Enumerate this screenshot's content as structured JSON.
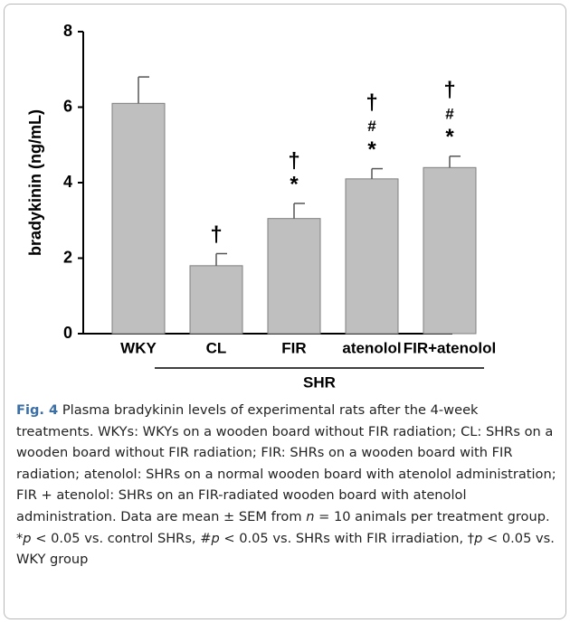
{
  "chart_data": {
    "type": "bar",
    "ylabel": "bradykinin (ng/mL)",
    "categories": [
      "WKY",
      "CL",
      "FIR",
      "atenolol",
      "FIR+atenolol"
    ],
    "values": [
      6.1,
      1.8,
      3.05,
      4.1,
      4.4
    ],
    "errors": [
      0.7,
      0.32,
      0.4,
      0.27,
      0.3
    ],
    "color": "#bfbfbf",
    "ylim": [
      0,
      8
    ],
    "yticks": [
      0,
      2,
      4,
      6,
      8
    ],
    "annotations": [
      [],
      [
        "†"
      ],
      [
        "†",
        "*"
      ],
      [
        "†",
        "#",
        "*"
      ],
      [
        "†",
        "#",
        "*"
      ]
    ],
    "group": {
      "label": "SHR",
      "categories": [
        1,
        4
      ]
    },
    "caption": [
      {
        "text": "Fig. 4",
        "style": "bold"
      },
      {
        "text": " Plasma bradykinin levels of experimental rats after the 4-week treatments. WKYs: WKYs on a wooden board without FIR radiation; CL: SHRs on a wooden board without FIR radiation; FIR: SHRs on a wooden board with FIR radiation; atenolol: SHRs on a normal wooden board with atenolol administration; FIR + atenolol: SHRs on an FIR-radiated wooden board with atenolol administration. Data are mean ± SEM from ",
        "style": "normal"
      },
      {
        "text": "n",
        "style": "italic"
      },
      {
        "text": " = 10 animals per treatment group. *",
        "style": "normal"
      },
      {
        "text": "p",
        "style": "italic"
      },
      {
        "text": " < 0.05 vs. control SHRs, #",
        "style": "normal"
      },
      {
        "text": "p",
        "style": "italic"
      },
      {
        "text": " < 0.05 vs. SHRs with FIR irradiation, †",
        "style": "normal"
      },
      {
        "text": "p",
        "style": "italic"
      },
      {
        "text": " < 0.05 vs. WKY group",
        "style": "normal"
      }
    ]
  }
}
